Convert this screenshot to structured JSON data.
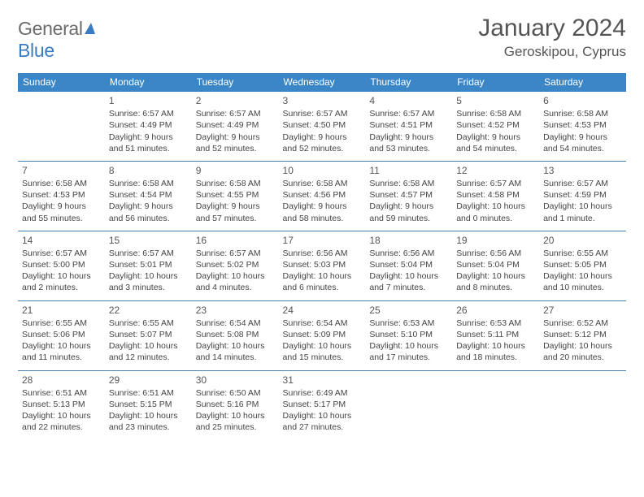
{
  "logo": {
    "text_gray": "General",
    "text_blue": "Blue"
  },
  "header": {
    "title": "January 2024",
    "location": "Geroskipou, Cyprus"
  },
  "colors": {
    "header_bg": "#3b86c7",
    "header_text": "#ffffff",
    "row_divider": "#4a7fab",
    "daynum": "#555555",
    "body_text": "#444444",
    "logo_gray": "#6b6b6b",
    "logo_blue": "#3b7bbf"
  },
  "weekdays": [
    "Sunday",
    "Monday",
    "Tuesday",
    "Wednesday",
    "Thursday",
    "Friday",
    "Saturday"
  ],
  "weeks": [
    [
      null,
      {
        "n": "1",
        "sr": "Sunrise: 6:57 AM",
        "ss": "Sunset: 4:49 PM",
        "dl": "Daylight: 9 hours and 51 minutes."
      },
      {
        "n": "2",
        "sr": "Sunrise: 6:57 AM",
        "ss": "Sunset: 4:49 PM",
        "dl": "Daylight: 9 hours and 52 minutes."
      },
      {
        "n": "3",
        "sr": "Sunrise: 6:57 AM",
        "ss": "Sunset: 4:50 PM",
        "dl": "Daylight: 9 hours and 52 minutes."
      },
      {
        "n": "4",
        "sr": "Sunrise: 6:57 AM",
        "ss": "Sunset: 4:51 PM",
        "dl": "Daylight: 9 hours and 53 minutes."
      },
      {
        "n": "5",
        "sr": "Sunrise: 6:58 AM",
        "ss": "Sunset: 4:52 PM",
        "dl": "Daylight: 9 hours and 54 minutes."
      },
      {
        "n": "6",
        "sr": "Sunrise: 6:58 AM",
        "ss": "Sunset: 4:53 PM",
        "dl": "Daylight: 9 hours and 54 minutes."
      }
    ],
    [
      {
        "n": "7",
        "sr": "Sunrise: 6:58 AM",
        "ss": "Sunset: 4:53 PM",
        "dl": "Daylight: 9 hours and 55 minutes."
      },
      {
        "n": "8",
        "sr": "Sunrise: 6:58 AM",
        "ss": "Sunset: 4:54 PM",
        "dl": "Daylight: 9 hours and 56 minutes."
      },
      {
        "n": "9",
        "sr": "Sunrise: 6:58 AM",
        "ss": "Sunset: 4:55 PM",
        "dl": "Daylight: 9 hours and 57 minutes."
      },
      {
        "n": "10",
        "sr": "Sunrise: 6:58 AM",
        "ss": "Sunset: 4:56 PM",
        "dl": "Daylight: 9 hours and 58 minutes."
      },
      {
        "n": "11",
        "sr": "Sunrise: 6:58 AM",
        "ss": "Sunset: 4:57 PM",
        "dl": "Daylight: 9 hours and 59 minutes."
      },
      {
        "n": "12",
        "sr": "Sunrise: 6:57 AM",
        "ss": "Sunset: 4:58 PM",
        "dl": "Daylight: 10 hours and 0 minutes."
      },
      {
        "n": "13",
        "sr": "Sunrise: 6:57 AM",
        "ss": "Sunset: 4:59 PM",
        "dl": "Daylight: 10 hours and 1 minute."
      }
    ],
    [
      {
        "n": "14",
        "sr": "Sunrise: 6:57 AM",
        "ss": "Sunset: 5:00 PM",
        "dl": "Daylight: 10 hours and 2 minutes."
      },
      {
        "n": "15",
        "sr": "Sunrise: 6:57 AM",
        "ss": "Sunset: 5:01 PM",
        "dl": "Daylight: 10 hours and 3 minutes."
      },
      {
        "n": "16",
        "sr": "Sunrise: 6:57 AM",
        "ss": "Sunset: 5:02 PM",
        "dl": "Daylight: 10 hours and 4 minutes."
      },
      {
        "n": "17",
        "sr": "Sunrise: 6:56 AM",
        "ss": "Sunset: 5:03 PM",
        "dl": "Daylight: 10 hours and 6 minutes."
      },
      {
        "n": "18",
        "sr": "Sunrise: 6:56 AM",
        "ss": "Sunset: 5:04 PM",
        "dl": "Daylight: 10 hours and 7 minutes."
      },
      {
        "n": "19",
        "sr": "Sunrise: 6:56 AM",
        "ss": "Sunset: 5:04 PM",
        "dl": "Daylight: 10 hours and 8 minutes."
      },
      {
        "n": "20",
        "sr": "Sunrise: 6:55 AM",
        "ss": "Sunset: 5:05 PM",
        "dl": "Daylight: 10 hours and 10 minutes."
      }
    ],
    [
      {
        "n": "21",
        "sr": "Sunrise: 6:55 AM",
        "ss": "Sunset: 5:06 PM",
        "dl": "Daylight: 10 hours and 11 minutes."
      },
      {
        "n": "22",
        "sr": "Sunrise: 6:55 AM",
        "ss": "Sunset: 5:07 PM",
        "dl": "Daylight: 10 hours and 12 minutes."
      },
      {
        "n": "23",
        "sr": "Sunrise: 6:54 AM",
        "ss": "Sunset: 5:08 PM",
        "dl": "Daylight: 10 hours and 14 minutes."
      },
      {
        "n": "24",
        "sr": "Sunrise: 6:54 AM",
        "ss": "Sunset: 5:09 PM",
        "dl": "Daylight: 10 hours and 15 minutes."
      },
      {
        "n": "25",
        "sr": "Sunrise: 6:53 AM",
        "ss": "Sunset: 5:10 PM",
        "dl": "Daylight: 10 hours and 17 minutes."
      },
      {
        "n": "26",
        "sr": "Sunrise: 6:53 AM",
        "ss": "Sunset: 5:11 PM",
        "dl": "Daylight: 10 hours and 18 minutes."
      },
      {
        "n": "27",
        "sr": "Sunrise: 6:52 AM",
        "ss": "Sunset: 5:12 PM",
        "dl": "Daylight: 10 hours and 20 minutes."
      }
    ],
    [
      {
        "n": "28",
        "sr": "Sunrise: 6:51 AM",
        "ss": "Sunset: 5:13 PM",
        "dl": "Daylight: 10 hours and 22 minutes."
      },
      {
        "n": "29",
        "sr": "Sunrise: 6:51 AM",
        "ss": "Sunset: 5:15 PM",
        "dl": "Daylight: 10 hours and 23 minutes."
      },
      {
        "n": "30",
        "sr": "Sunrise: 6:50 AM",
        "ss": "Sunset: 5:16 PM",
        "dl": "Daylight: 10 hours and 25 minutes."
      },
      {
        "n": "31",
        "sr": "Sunrise: 6:49 AM",
        "ss": "Sunset: 5:17 PM",
        "dl": "Daylight: 10 hours and 27 minutes."
      },
      null,
      null,
      null
    ]
  ]
}
